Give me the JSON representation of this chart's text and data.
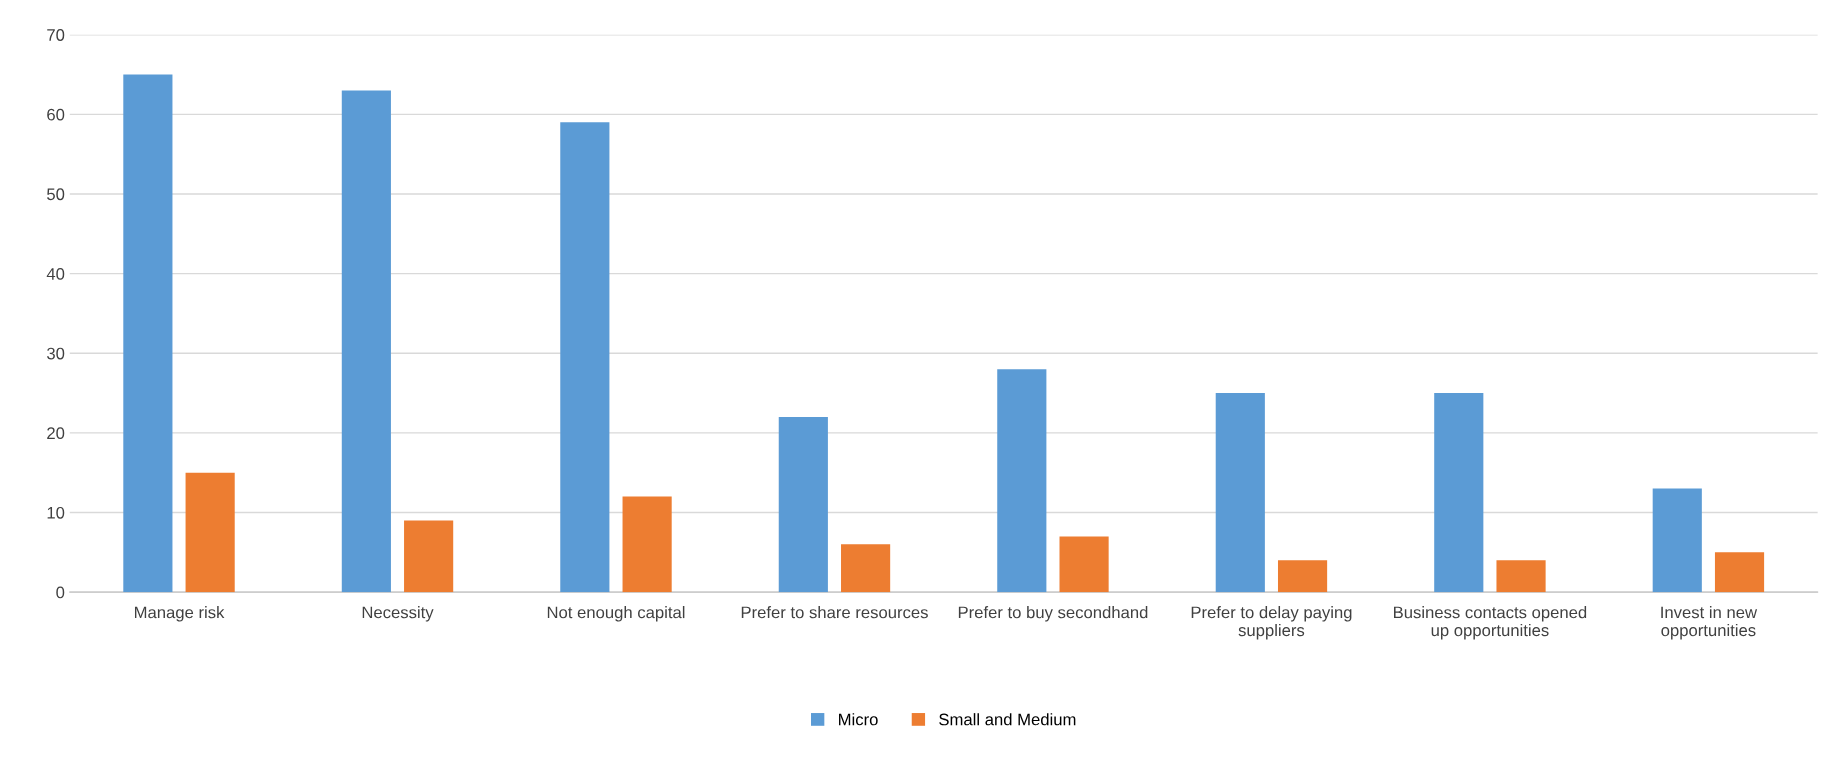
{
  "chart_data": {
    "type": "bar",
    "categories": [
      "Manage risk",
      "Necessity",
      "Not enough capital",
      "Prefer to share resources",
      "Prefer to buy secondhand",
      "Prefer to delay paying suppliers",
      "Business contacts opened up opportunities",
      "Invest in new opportunities"
    ],
    "series": [
      {
        "name": "Micro",
        "color": "#5b9bd5",
        "values": [
          65,
          63,
          59,
          22,
          28,
          25,
          25,
          13
        ]
      },
      {
        "name": "Small and Medium",
        "color": "#ed7d31",
        "values": [
          15,
          9,
          12,
          6,
          7,
          4,
          4,
          5
        ]
      }
    ],
    "ylim": [
      0,
      70
    ],
    "yticks": [
      0,
      10,
      20,
      30,
      40,
      50,
      60,
      70
    ],
    "grid": "y",
    "legend": "bottom"
  }
}
